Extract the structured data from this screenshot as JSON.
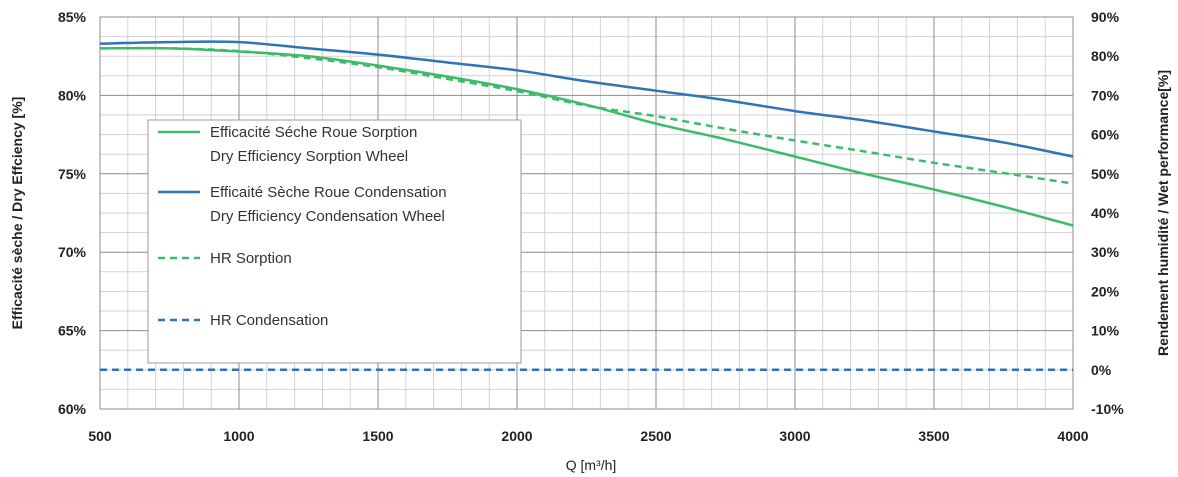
{
  "chart_data": {
    "type": "line",
    "xlabel": "Q [m³/h]",
    "ylabel_left": "Efficacité sèche / Dry Effciency [%]",
    "ylabel_right": "Rendement humidité / Wet performance[%]",
    "xlim": [
      500,
      4000
    ],
    "ylim_left": [
      60,
      85
    ],
    "ylim_right": [
      -10,
      90
    ],
    "x_ticks": [
      "500",
      "1000",
      "1500",
      "2000",
      "2500",
      "3000",
      "3500",
      "4000"
    ],
    "y_left_ticks": [
      "60%",
      "65%",
      "70%",
      "75%",
      "80%",
      "85%"
    ],
    "y_right_ticks": [
      "-10%",
      "0%",
      "10%",
      "20%",
      "30%",
      "40%",
      "50%",
      "60%",
      "70%",
      "80%",
      "90%"
    ],
    "grid": true,
    "legend_position": "left",
    "series": [
      {
        "name": [
          "Efficacité Séche Roue Sorption",
          "Dry Efficiency Sorption Wheel"
        ],
        "axis": "left",
        "style": "solid",
        "color": "#3dbb6b",
        "x": [
          500,
          750,
          1000,
          1250,
          1500,
          1750,
          2000,
          2250,
          2500,
          2750,
          3000,
          3250,
          3500,
          3750,
          4000
        ],
        "y": [
          83.0,
          83.0,
          82.8,
          82.5,
          81.9,
          81.2,
          80.4,
          79.4,
          78.2,
          77.2,
          76.1,
          75.0,
          74.0,
          72.9,
          71.7
        ]
      },
      {
        "name": [
          "Efficaité Sèche Roue Condensation",
          "Dry Efficiency Condensation Wheel"
        ],
        "axis": "left",
        "style": "solid",
        "color": "#2e75b6",
        "x": [
          500,
          750,
          1000,
          1250,
          1500,
          1750,
          2000,
          2250,
          2500,
          2750,
          3000,
          3250,
          3500,
          3750,
          4000
        ],
        "y": [
          83.3,
          83.4,
          83.4,
          83.0,
          82.6,
          82.1,
          81.6,
          80.9,
          80.3,
          79.7,
          79.0,
          78.4,
          77.7,
          77.0,
          76.1
        ]
      },
      {
        "name": [
          "HR Sorption"
        ],
        "axis": "right",
        "style": "dashed",
        "color": "#3dbb6b",
        "x": [
          500,
          750,
          1000,
          1250,
          1500,
          1750,
          2000,
          2250,
          2500,
          2750,
          3000,
          3250,
          3500,
          3750,
          4000
        ],
        "y": [
          82.0,
          82.0,
          81.3,
          79.5,
          77.2,
          74.2,
          71.1,
          67.4,
          64.7,
          61.5,
          58.5,
          55.7,
          52.8,
          50.2,
          47.5
        ]
      },
      {
        "name": [
          "HR Condensation"
        ],
        "axis": "right",
        "style": "dashed",
        "color": "#2e75b6",
        "x": [
          500,
          4000
        ],
        "y": [
          0,
          0
        ]
      }
    ]
  }
}
